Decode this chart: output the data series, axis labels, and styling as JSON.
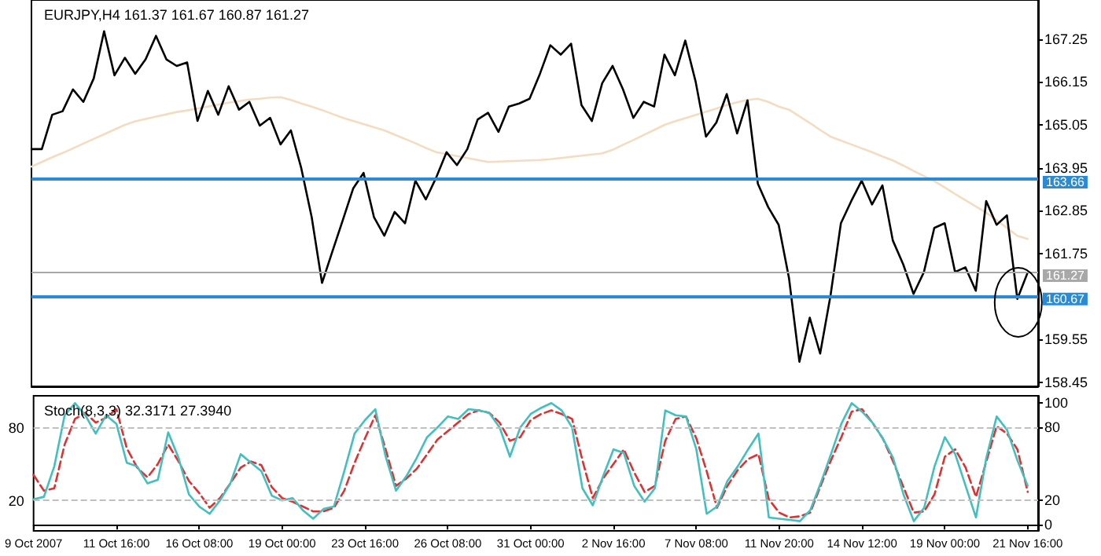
{
  "chart_data": [
    {
      "type": "line",
      "title": "EURJPY,H4 161.37 161.67 160.87 161.27",
      "categories": [
        null,
        null,
        null,
        null,
        null,
        null,
        null,
        null,
        null,
        null,
        null,
        null,
        null,
        null,
        null,
        null,
        null,
        null,
        null,
        null,
        null,
        null,
        null,
        null,
        null,
        null,
        null,
        null,
        null,
        null,
        null,
        null,
        null,
        null,
        null,
        null,
        null,
        null,
        null,
        null,
        null,
        null,
        null,
        null,
        null,
        null,
        null,
        null,
        null,
        null,
        null,
        null,
        null,
        null,
        null,
        null,
        null,
        null,
        null,
        null,
        null,
        null,
        null,
        null,
        null,
        null,
        null,
        null,
        null,
        null,
        null,
        null,
        null,
        null,
        null,
        null,
        null,
        null,
        null,
        null,
        null,
        null,
        null,
        null,
        null,
        null,
        null,
        null,
        null,
        null,
        null,
        null,
        null,
        null,
        null,
        null,
        null,
        null
      ],
      "ylim": [
        158.35,
        168.25
      ],
      "yticks": [
        158.45,
        159.55,
        161.75,
        162.85,
        163.95,
        165.05,
        166.15,
        167.25
      ],
      "grid": false,
      "marker": "none",
      "series": [
        {
          "color": "#000000",
          "values": [
            164.43,
            164.43,
            165.31,
            165.4,
            165.96,
            165.64,
            166.24,
            167.45,
            166.32,
            166.77,
            166.36,
            166.73,
            167.33,
            166.73,
            166.56,
            166.65,
            165.15,
            165.92,
            165.31,
            166.04,
            165.44,
            165.64,
            165.03,
            165.23,
            164.55,
            164.91,
            163.94,
            162.69,
            161.0,
            161.81,
            162.61,
            163.42,
            163.82,
            162.69,
            162.21,
            162.82,
            162.53,
            163.62,
            163.14,
            163.7,
            164.35,
            164.02,
            164.43,
            165.19,
            165.36,
            164.87,
            165.52,
            165.6,
            165.72,
            166.36,
            167.09,
            166.85,
            167.13,
            165.56,
            165.15,
            166.12,
            166.56,
            165.96,
            165.23,
            165.64,
            165.52,
            166.85,
            166.32,
            167.21,
            166.16,
            164.75,
            165.11,
            165.84,
            164.83,
            165.68,
            163.54,
            162.94,
            162.49,
            161.12,
            158.98,
            160.11,
            159.19,
            160.68,
            162.53,
            163.1,
            163.62,
            163.01,
            163.5,
            162.09,
            161.48,
            160.72,
            161.28,
            162.41,
            162.53,
            161.28,
            161.4,
            160.8,
            163.1,
            162.49,
            162.73,
            160.59,
            161.27,
            null
          ]
        },
        {
          "color": "#f5dcc0",
          "values": [
            163.98,
            164.1,
            164.22,
            164.33,
            164.45,
            164.57,
            164.69,
            164.81,
            164.93,
            165.05,
            165.14,
            165.2,
            165.26,
            165.32,
            165.38,
            165.42,
            165.47,
            165.52,
            165.57,
            165.62,
            165.66,
            165.7,
            165.72,
            165.75,
            165.76,
            165.69,
            165.6,
            165.52,
            165.43,
            165.33,
            165.23,
            165.15,
            165.07,
            164.99,
            164.91,
            164.8,
            164.69,
            164.58,
            164.46,
            164.35,
            164.3,
            164.25,
            164.2,
            164.15,
            164.1,
            164.11,
            164.12,
            164.13,
            164.14,
            164.15,
            164.17,
            164.2,
            164.23,
            164.26,
            164.29,
            164.32,
            164.41,
            164.54,
            164.66,
            164.79,
            164.92,
            165.05,
            165.14,
            165.22,
            165.3,
            165.39,
            165.47,
            165.56,
            165.63,
            165.69,
            165.72,
            165.64,
            165.52,
            165.44,
            165.27,
            165.1,
            164.92,
            164.75,
            164.65,
            164.55,
            164.45,
            164.35,
            164.24,
            164.14,
            164.01,
            163.87,
            163.74,
            163.61,
            163.45,
            163.28,
            163.12,
            162.96,
            162.8,
            162.61,
            162.41,
            162.21,
            162.13,
            null
          ]
        }
      ],
      "ref_lines": [
        {
          "axis": "y",
          "value": 161.27,
          "label": "161.27",
          "color": "#a8a8a8"
        },
        {
          "axis": "y",
          "value": 163.66,
          "label": "163.66",
          "color": "#2a8ad4"
        },
        {
          "axis": "y",
          "value": 160.67,
          "label": "160.67",
          "color": "#2a8ad4"
        }
      ]
    },
    {
      "type": "line",
      "title": "Stoch(8,3,3) 32.3171 27.3940",
      "categories": [
        "9 Oct 2007",
        null,
        null,
        null,
        null,
        null,
        null,
        null,
        "11 Oct 16:00",
        null,
        null,
        null,
        null,
        null,
        null,
        null,
        "16 Oct 08:00",
        null,
        null,
        null,
        null,
        null,
        null,
        null,
        "19 Oct 00:00",
        null,
        null,
        null,
        null,
        null,
        null,
        null,
        "23 Oct 16:00",
        null,
        null,
        null,
        null,
        null,
        null,
        null,
        "26 Oct 08:00",
        null,
        null,
        null,
        null,
        null,
        null,
        null,
        "31 Oct 00:00",
        null,
        null,
        null,
        null,
        null,
        null,
        null,
        "2 Nov 16:00",
        null,
        null,
        null,
        null,
        null,
        null,
        null,
        "7 Nov 08:00",
        null,
        null,
        null,
        null,
        null,
        null,
        null,
        "11 Nov 20:00",
        null,
        null,
        null,
        null,
        null,
        null,
        null,
        "14 Nov 12:00",
        null,
        null,
        null,
        null,
        null,
        null,
        null,
        "19 Nov 00:00",
        null,
        null,
        null,
        null,
        null,
        null,
        null,
        "21 Nov 16:00",
        null
      ],
      "ylim": [
        -5,
        106
      ],
      "yticks": [
        0,
        20,
        80,
        100
      ],
      "grid": false,
      "marker": "none",
      "series": [
        {
          "color": "#40c0c0",
          "values": [
            21,
            23,
            48,
            90,
            100,
            90,
            75,
            90,
            83,
            51,
            48,
            34,
            37,
            76,
            55,
            25,
            15,
            9,
            20,
            34,
            58,
            51,
            44,
            24,
            20,
            22,
            12,
            5,
            13,
            15,
            44,
            75,
            86,
            95,
            56,
            28,
            40,
            55,
            72,
            80,
            89,
            87,
            95,
            94,
            92,
            80,
            56,
            80,
            91,
            96,
            100,
            94,
            80,
            30,
            16,
            40,
            62,
            59,
            32,
            19,
            30,
            94,
            90,
            89,
            62,
            9,
            15,
            36,
            48,
            62,
            75,
            6,
            5,
            4,
            3,
            12,
            34,
            58,
            83,
            100,
            93,
            84,
            71,
            55,
            25,
            3,
            14,
            48,
            72,
            58,
            32,
            6,
            55,
            89,
            78,
            53,
            32,
            null
          ]
        },
        {
          "color": "#e03030",
          "line_style": "dashed",
          "values": [
            41,
            28,
            30,
            66,
            87,
            92,
            84,
            88,
            95,
            63,
            47,
            39,
            50,
            66,
            52,
            36,
            26,
            14,
            22,
            34,
            47,
            52,
            49,
            31,
            22,
            19,
            15,
            11,
            11,
            14,
            28,
            51,
            71,
            90,
            62,
            32,
            38,
            46,
            58,
            70,
            77,
            84,
            91,
            94,
            92,
            84,
            69,
            72,
            86,
            91,
            94,
            91,
            87,
            53,
            22,
            38,
            50,
            62,
            43,
            27,
            32,
            69,
            87,
            89,
            71,
            44,
            14,
            32,
            45,
            54,
            58,
            21,
            10,
            6,
            7,
            10,
            32,
            53,
            72,
            93,
            95,
            84,
            71,
            52,
            31,
            10,
            11,
            25,
            56,
            62,
            47,
            23,
            52,
            81,
            75,
            62,
            27,
            null
          ]
        }
      ],
      "ref_lines": [
        {
          "axis": "y",
          "value": 80,
          "label": "80",
          "color": "#c0c0c0",
          "line_style": "dashed"
        },
        {
          "axis": "y",
          "value": 20,
          "label": "20",
          "color": "#c0c0c0",
          "line_style": "dashed"
        }
      ]
    }
  ]
}
